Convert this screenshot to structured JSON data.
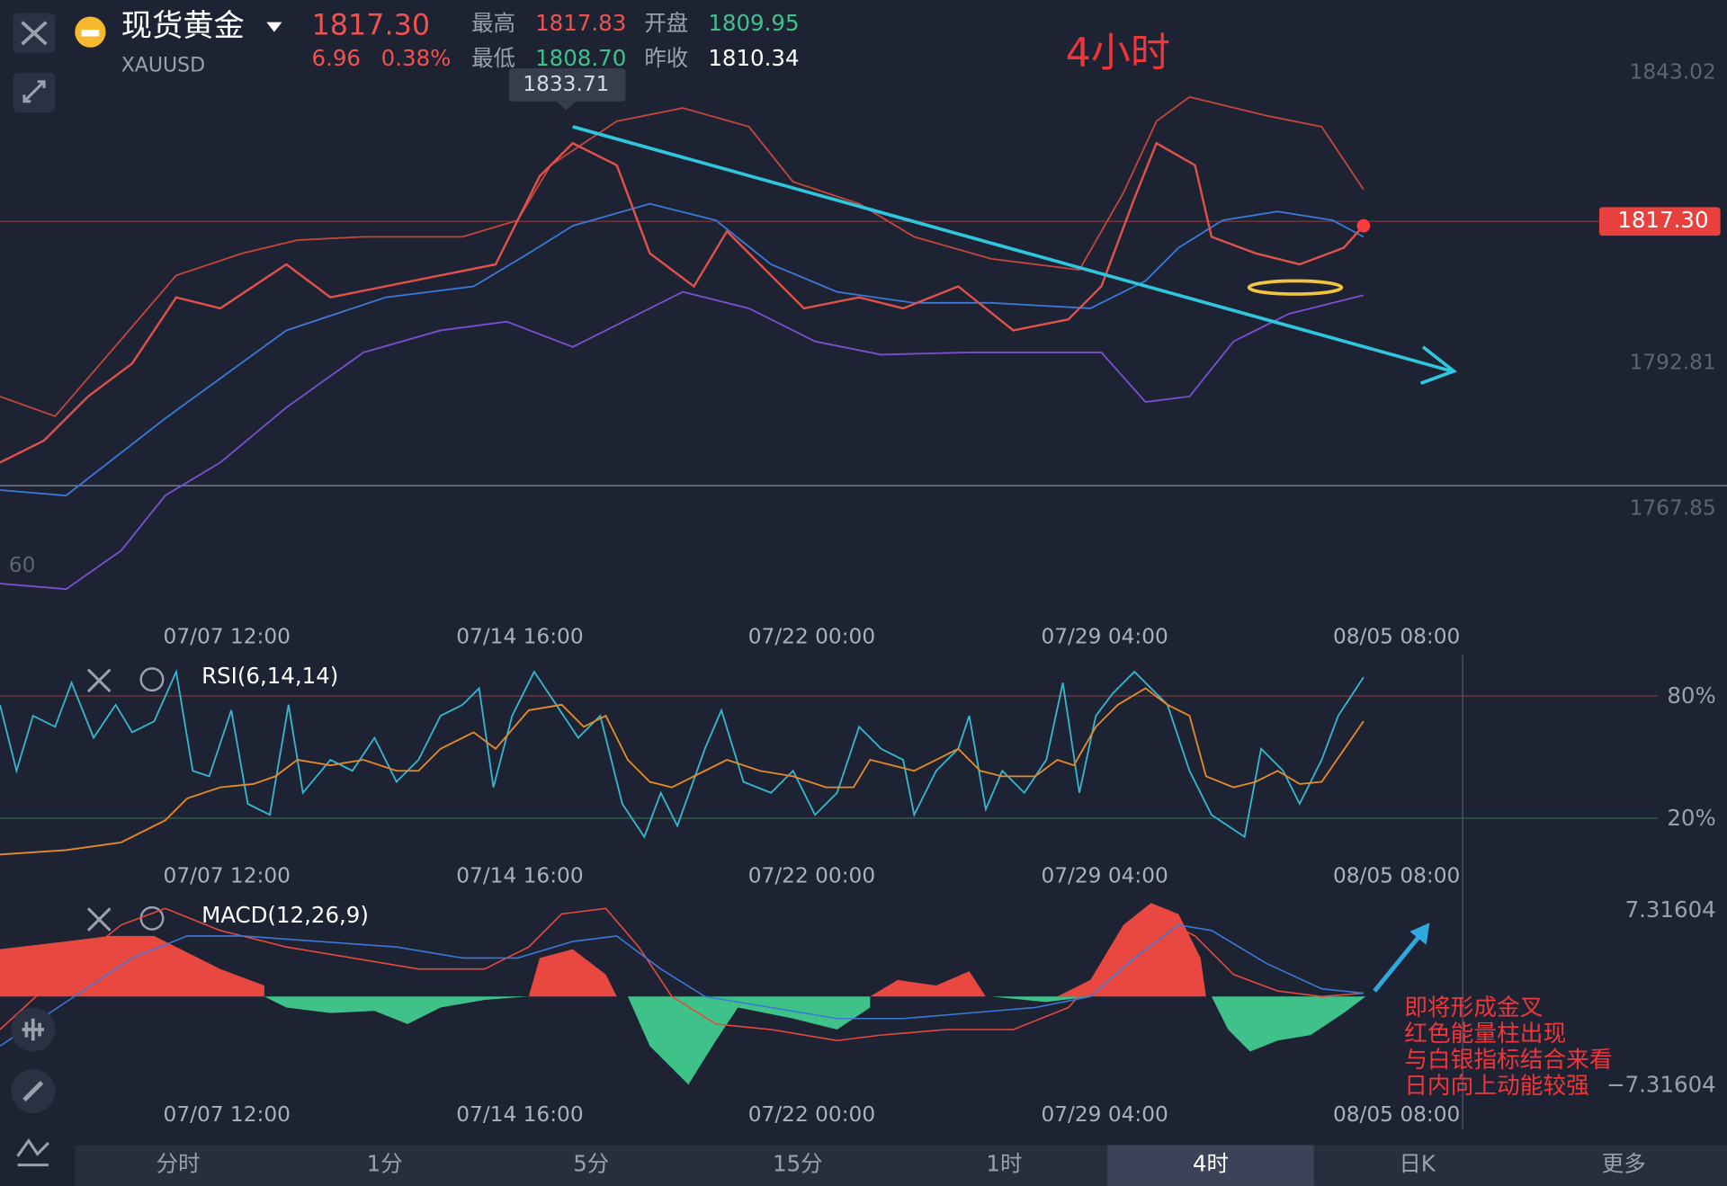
{
  "header": {
    "title": "现货黄金",
    "symbol": "XAUUSD",
    "price": "1817.30",
    "change": "6.96",
    "change_pct": "0.38%",
    "stats": [
      {
        "label": "最高",
        "value": "1817.83"
      },
      {
        "label": "最低",
        "value": "1808.70"
      },
      {
        "label": "开盘",
        "value": "1809.95"
      },
      {
        "label": "昨收",
        "value": "1810.34"
      }
    ]
  },
  "chart": {
    "period_note": "4小时",
    "price_axis": [
      "1843.02",
      "1792.81",
      "1767.85"
    ],
    "high_marker": "1833.71",
    "left_label": "60",
    "time_labels": [
      "07/07 12:00",
      "07/14 16:00",
      "07/22 00:00",
      "07/29 04:00",
      "08/05 08:00"
    ]
  },
  "rsi": {
    "label": "RSI(6,14,14)",
    "levels": [
      "80%",
      "20%"
    ]
  },
  "macd": {
    "label": "MACD(12,26,9)",
    "axis": [
      "7.31604",
      "−7.31604"
    ]
  },
  "note": [
    "即将形成金叉",
    "红色能量柱出现",
    "与白银指标结合来看",
    "日内向上动能较强"
  ],
  "tabs": {
    "items": [
      "分时",
      "1分",
      "5分",
      "15分",
      "1时",
      "4时",
      "日K",
      "更多"
    ],
    "active": 5
  }
}
